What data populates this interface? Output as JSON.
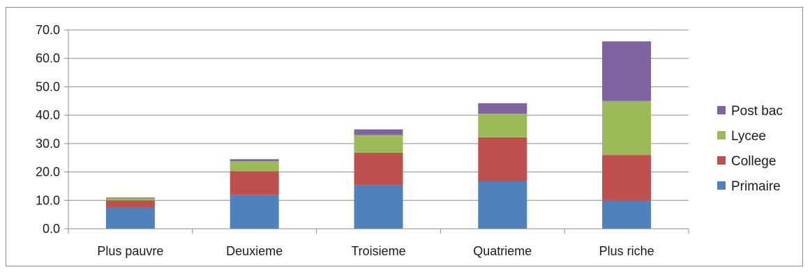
{
  "chart_data": {
    "type": "bar",
    "stacked": true,
    "title": "",
    "xlabel": "",
    "ylabel": "",
    "categories": [
      "Plus pauvre",
      "Deuxieme",
      "Troisieme",
      "Quatrieme",
      "Plus riche"
    ],
    "series": [
      {
        "name": "Primaire",
        "color": "#4f81bd",
        "values": [
          7.5,
          12.0,
          15.3,
          16.7,
          10.0
        ]
      },
      {
        "name": "College",
        "color": "#c0504d",
        "values": [
          2.5,
          8.3,
          11.5,
          15.5,
          16.0
        ]
      },
      {
        "name": "Lycee",
        "color": "#9bbb59",
        "values": [
          0.7,
          3.5,
          6.2,
          8.3,
          19.0
        ]
      },
      {
        "name": "Post bac",
        "color": "#8064a2",
        "values": [
          0.3,
          0.7,
          2.0,
          3.7,
          21.0
        ]
      }
    ],
    "ylim": [
      0,
      70
    ],
    "yticks": [
      0,
      10,
      20,
      30,
      40,
      50,
      60,
      70
    ],
    "ytick_labels": [
      "0.0",
      "10.0",
      "20.0",
      "30.0",
      "40.0",
      "50.0",
      "60.0",
      "70.0"
    ],
    "grid": true,
    "legend_position": "right",
    "legend_order": [
      "Post bac",
      "Lycee",
      "College",
      "Primaire"
    ]
  }
}
